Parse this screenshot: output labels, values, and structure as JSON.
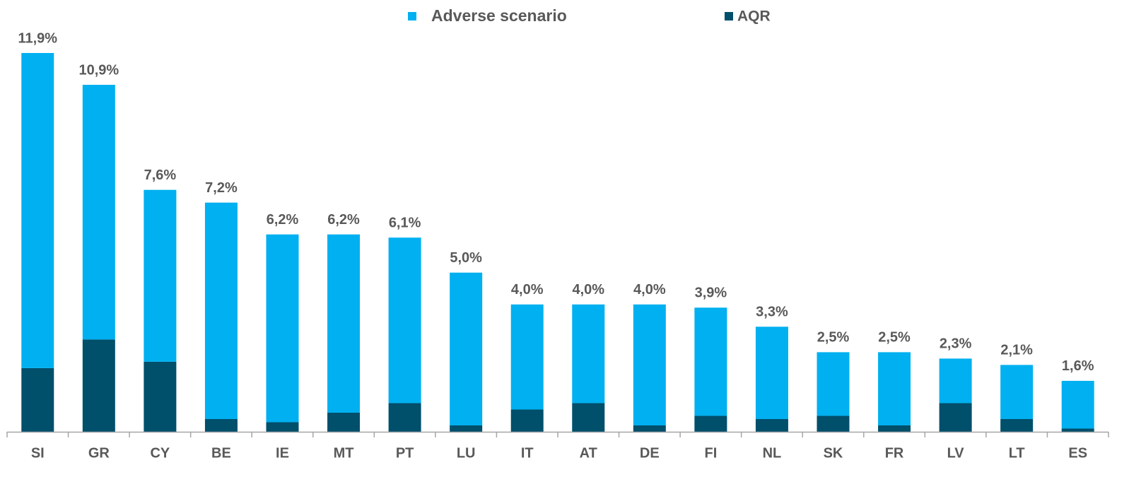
{
  "chart_data": {
    "type": "stacked_bar",
    "categories": [
      "SI",
      "GR",
      "CY",
      "BE",
      "IE",
      "MT",
      "PT",
      "LU",
      "IT",
      "AT",
      "DE",
      "FI",
      "NL",
      "SK",
      "FR",
      "LV",
      "LT",
      "ES"
    ],
    "series": [
      {
        "name": "Adverse scenario",
        "color": "#00b0f0",
        "values": [
          9.9,
          8.0,
          5.4,
          6.8,
          5.9,
          5.6,
          5.2,
          4.8,
          3.3,
          3.1,
          3.8,
          3.4,
          2.9,
          2.0,
          2.3,
          1.4,
          1.7,
          1.5
        ]
      },
      {
        "name": "AQR",
        "color": "#004f6b",
        "values": [
          2.0,
          2.9,
          2.2,
          0.4,
          0.3,
          0.6,
          0.9,
          0.2,
          0.7,
          0.9,
          0.2,
          0.5,
          0.4,
          0.5,
          0.2,
          0.9,
          0.4,
          0.1
        ]
      }
    ],
    "totals": [
      11.9,
      10.9,
      7.6,
      7.2,
      6.2,
      6.2,
      6.1,
      5.0,
      4.0,
      4.0,
      4.0,
      3.9,
      3.3,
      2.5,
      2.5,
      2.3,
      2.1,
      1.6
    ],
    "total_labels": [
      "11,9%",
      "10,9%",
      "7,6%",
      "7,2%",
      "6,2%",
      "6,2%",
      "6,1%",
      "5,0%",
      "4,0%",
      "4,0%",
      "4,0%",
      "3,9%",
      "3,3%",
      "2,5%",
      "2,5%",
      "2,3%",
      "2,1%",
      "1,6%"
    ]
  }
}
